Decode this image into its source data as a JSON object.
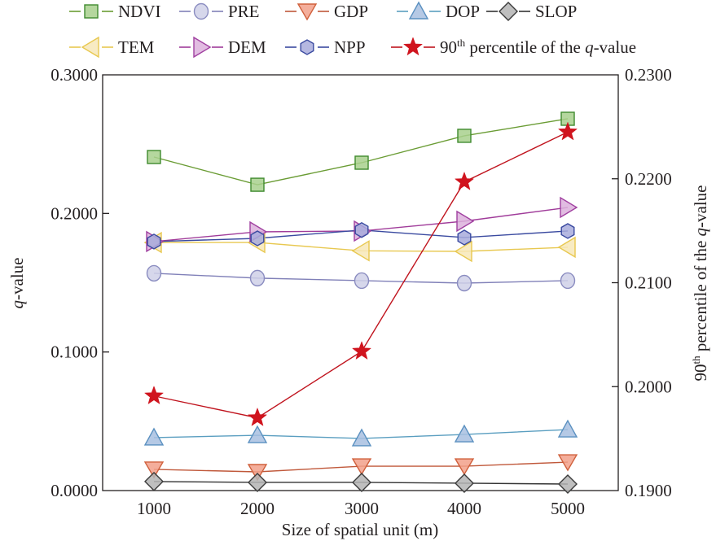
{
  "chart_data": {
    "type": "line",
    "title": "",
    "xlabel": "Size of spatial unit (m)",
    "ylabel": "q-value",
    "ylabel_italic_part": "q",
    "ylabel_rest": "-value",
    "y2label_prefix": "90",
    "y2label_sup": "th",
    "y2label_middle": " percentile of the ",
    "y2label_italic": "q",
    "y2label_suffix": "-value",
    "x": [
      1000,
      2000,
      3000,
      4000,
      5000
    ],
    "x_tick_labels": [
      "1000",
      "2000",
      "3000",
      "4000",
      "5000"
    ],
    "ylim": [
      0,
      0.3
    ],
    "y_ticks": [
      0,
      0.1,
      0.2,
      0.3
    ],
    "y_tick_labels": [
      "0.0000",
      "0.1000",
      "0.2000",
      "0.3000"
    ],
    "y2lim": [
      0.19,
      0.23
    ],
    "y2_ticks": [
      0.19,
      0.2,
      0.21,
      0.22,
      0.23
    ],
    "y2_tick_labels": [
      "0.1900",
      "0.2000",
      "0.2100",
      "0.2200",
      "0.2300"
    ],
    "grid": false,
    "legend_position": "top",
    "series": [
      {
        "name": "NDVI",
        "axis": "left",
        "marker": "square",
        "line_color": "#6a9c34",
        "fill": "#a8d08d",
        "stroke": "#3f8a2e",
        "values": [
          0.2407,
          0.2207,
          0.2366,
          0.256,
          0.2683
        ]
      },
      {
        "name": "PRE",
        "axis": "left",
        "marker": "circle",
        "line_color": "#8080b8",
        "fill": "#cfd0e8",
        "stroke": "#8a8cc0",
        "values": [
          0.1568,
          0.1533,
          0.1515,
          0.1497,
          0.1515
        ]
      },
      {
        "name": "GDP",
        "axis": "left",
        "marker": "triangle-down",
        "line_color": "#c0583a",
        "fill": "#f2a08a",
        "stroke": "#d0603c",
        "values": [
          0.0153,
          0.0135,
          0.0176,
          0.0176,
          0.0205
        ]
      },
      {
        "name": "DOP",
        "axis": "left",
        "marker": "triangle-up",
        "line_color": "#5a9ec0",
        "fill": "#a8c0e0",
        "stroke": "#5a90c0",
        "values": [
          0.0382,
          0.0399,
          0.0376,
          0.0405,
          0.044
        ]
      },
      {
        "name": "SLOP",
        "axis": "left",
        "marker": "diamond",
        "line_color": "#333333",
        "fill": "#b4b4b4",
        "stroke": "#3a3a3a",
        "values": [
          0.0065,
          0.0059,
          0.0059,
          0.0053,
          0.0047
        ]
      },
      {
        "name": "TEM",
        "axis": "left",
        "marker": "triangle-left",
        "line_color": "#e8c850",
        "fill": "#f7e8b8",
        "stroke": "#e8c850",
        "values": [
          0.179,
          0.179,
          0.173,
          0.1726,
          0.1756
        ]
      },
      {
        "name": "DEM",
        "axis": "left",
        "marker": "triangle-right",
        "line_color": "#a03c9a",
        "fill": "#dcb0dc",
        "stroke": "#a040a0",
        "values": [
          0.1797,
          0.1867,
          0.1873,
          0.1944,
          0.2043
        ]
      },
      {
        "name": "NPP",
        "axis": "left",
        "marker": "hexagon",
        "line_color": "#3a4aa0",
        "fill": "#a8acdc",
        "stroke": "#3a4aa0",
        "values": [
          0.1797,
          0.182,
          0.188,
          0.1826,
          0.1873
        ]
      },
      {
        "name": "90th percentile of the q-value",
        "axis": "right",
        "marker": "star",
        "line_color": "#c0141e",
        "fill": "#d0141e",
        "stroke": "#d0141e",
        "values": [
          0.1991,
          0.197,
          0.2034,
          0.2197,
          0.2245
        ]
      }
    ],
    "legend": [
      {
        "label": "NDVI",
        "series": 0
      },
      {
        "label": "PRE",
        "series": 1
      },
      {
        "label": "GDP",
        "series": 2
      },
      {
        "label": "DOP",
        "series": 3
      },
      {
        "label": "SLOP",
        "series": 4
      },
      {
        "label": "TEM",
        "series": 5
      },
      {
        "label": "DEM",
        "series": 6
      },
      {
        "label": "NPP",
        "series": 7
      },
      {
        "label_prefix": "90",
        "label_sup": "th",
        "label_middle": " percentile of the ",
        "label_italic": "q",
        "label_suffix": "-value",
        "series": 8
      }
    ]
  }
}
